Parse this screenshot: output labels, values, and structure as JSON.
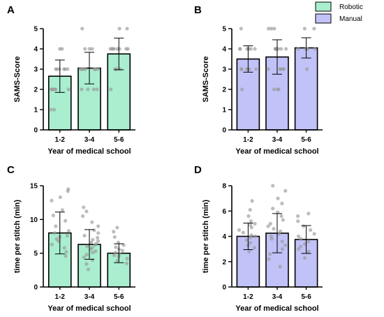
{
  "legend": [
    {
      "label": "Robotic",
      "color": "#a8eecf"
    },
    {
      "label": "Manual",
      "color": "#c1c2f7"
    }
  ],
  "chart_data": [
    {
      "panel": "A",
      "type": "bar",
      "categories": [
        "1-2",
        "3-4",
        "5-6"
      ],
      "values": [
        2.65,
        3.05,
        3.75
      ],
      "error_bars": [
        0.8,
        0.78,
        0.78
      ],
      "points": [
        [
          1,
          1,
          2,
          2,
          2,
          2,
          2,
          2,
          3,
          3,
          3,
          3,
          3,
          3,
          4,
          4
        ],
        [
          2,
          2,
          2,
          2,
          3,
          3,
          3,
          3,
          3,
          3,
          3,
          3,
          4,
          4,
          4,
          5
        ],
        [
          2,
          3,
          3,
          3,
          4,
          4,
          4,
          4,
          4,
          4,
          4,
          4,
          5,
          5
        ]
      ],
      "xlabel": "Year of medical school",
      "ylabel": "SAMS-Score",
      "ylim": [
        0,
        5
      ],
      "yticks": [
        0,
        1,
        2,
        3,
        4,
        5
      ],
      "bar_color": "#a8eecf",
      "series": "Robotic"
    },
    {
      "panel": "B",
      "type": "bar",
      "categories": [
        "1-2",
        "3-4",
        "5-6"
      ],
      "values": [
        3.5,
        3.6,
        4.05
      ],
      "error_bars": [
        0.65,
        0.85,
        0.5
      ],
      "points": [
        [
          2,
          3,
          3,
          3,
          3,
          3,
          3,
          4,
          4,
          4,
          4,
          4,
          4,
          5
        ],
        [
          2,
          2,
          2,
          3,
          3,
          3,
          3,
          3,
          4,
          4,
          4,
          4,
          4,
          4,
          4,
          5,
          5,
          5
        ],
        [
          3,
          4,
          4,
          4,
          4,
          4,
          5,
          5
        ]
      ],
      "xlabel": "Year of medical school",
      "ylabel": "SAMS-Score",
      "ylim": [
        0,
        5
      ],
      "yticks": [
        0,
        1,
        2,
        3,
        4,
        5
      ],
      "bar_color": "#c1c2f7",
      "series": "Manual"
    },
    {
      "panel": "C",
      "type": "bar",
      "categories": [
        "1-2",
        "3-4",
        "5-6"
      ],
      "values": [
        8.0,
        6.3,
        5.0
      ],
      "error_bars": [
        3.1,
        2.2,
        1.4
      ],
      "points": [
        [
          4.6,
          5.2,
          5.8,
          6.3,
          6.8,
          7.1,
          7.4,
          7.6,
          8.0,
          8.3,
          9.0,
          9.8,
          10.6,
          11.4,
          12.8,
          13.3,
          14.2,
          14.5
        ],
        [
          2.6,
          3.4,
          4.0,
          4.4,
          4.8,
          5.1,
          5.3,
          5.6,
          5.8,
          6.0,
          6.2,
          6.4,
          6.6,
          6.8,
          7.0,
          7.3,
          7.6,
          8.0,
          8.4,
          9.0,
          9.6,
          10.5,
          11.2,
          11.8
        ],
        [
          3.5,
          3.9,
          4.2,
          4.5,
          4.7,
          4.9,
          5.1,
          5.4,
          5.6,
          5.9,
          6.2,
          6.6,
          7.4,
          8.2,
          8.8
        ]
      ],
      "xlabel": "Year of medical school",
      "ylabel": "time per stitch (min)",
      "ylim": [
        0,
        15
      ],
      "yticks": [
        0,
        5,
        10,
        15
      ],
      "bar_color": "#a8eecf",
      "series": "Robotic"
    },
    {
      "panel": "D",
      "type": "bar",
      "categories": [
        "1-2",
        "3-4",
        "5-6"
      ],
      "values": [
        4.0,
        4.25,
        3.75
      ],
      "error_bars": [
        1.05,
        1.55,
        1.1
      ],
      "points": [
        [
          2.8,
          3.1,
          3.3,
          3.5,
          3.7,
          3.9,
          4.0,
          4.1,
          4.3,
          4.5,
          4.7,
          4.9,
          5.0,
          5.2,
          5.6,
          6.1,
          6.8
        ],
        [
          1.6,
          2.2,
          2.6,
          3.0,
          3.3,
          3.6,
          3.8,
          4.0,
          4.2,
          4.4,
          4.6,
          4.8,
          5.0,
          5.3,
          5.6,
          5.9,
          6.2,
          6.6,
          7.0,
          7.6,
          8.0
        ],
        [
          2.3,
          2.8,
          3.0,
          3.2,
          3.4,
          3.6,
          3.8,
          4.0,
          4.2,
          4.5,
          4.8,
          5.2,
          5.6,
          5.8
        ]
      ],
      "xlabel": "Year of medical school",
      "ylabel": "time per stitch (min)",
      "ylim": [
        0,
        8
      ],
      "yticks": [
        0,
        2,
        4,
        6,
        8
      ],
      "bar_color": "#c1c2f7",
      "series": "Manual"
    }
  ]
}
